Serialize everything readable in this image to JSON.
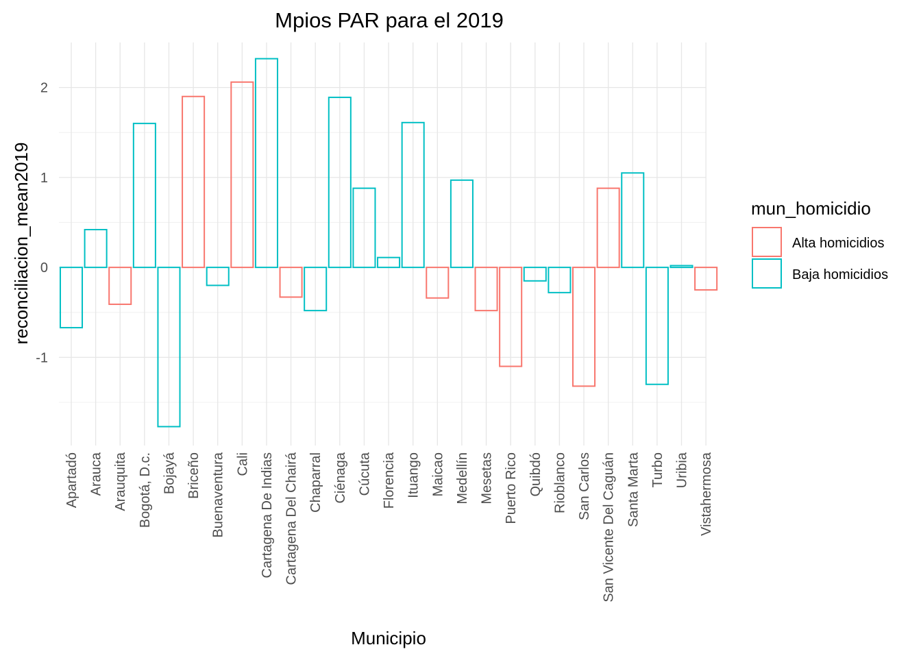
{
  "chart_data": {
    "type": "bar",
    "title": "Mpios PAR para el 2019",
    "xlabel": "Municipio",
    "ylabel": "reconciliacion_mean2019",
    "ylim": [
      -1.98,
      2.5
    ],
    "yticks": [
      -1,
      0,
      1,
      2
    ],
    "grid": true,
    "legend": {
      "title": "mun_homicidio",
      "position": "right",
      "entries": [
        {
          "label": "Alta homicidios",
          "color": "#F8766D"
        },
        {
          "label": "Baja homicidios",
          "color": "#00BFC4"
        }
      ]
    },
    "categories": [
      "Apartadó",
      "Arauca",
      "Arauquita",
      "Bogotá, D.c.",
      "Bojayá",
      "Briceño",
      "Buenaventura",
      "Cali",
      "Cartagena De Indias",
      "Cartagena Del Chairá",
      "Chaparral",
      "Ciénaga",
      "Cúcuta",
      "Florencia",
      "Ituango",
      "Maicao",
      "Medellín",
      "Mesetas",
      "Puerto Rico",
      "Quibdó",
      "Rioblanco",
      "San Carlos",
      "San Vicente Del Caguán",
      "Santa Marta",
      "Turbo",
      "Uribia",
      "Vistahermosa"
    ],
    "values": [
      -0.67,
      0.42,
      -0.41,
      1.6,
      -1.77,
      1.9,
      -0.2,
      2.06,
      2.32,
      -0.33,
      -0.48,
      1.89,
      0.88,
      0.11,
      1.61,
      -0.34,
      0.97,
      -0.48,
      -1.1,
      -0.15,
      -0.28,
      -1.32,
      0.88,
      1.05,
      -1.3,
      0.02,
      -0.25
    ],
    "groups": [
      "Baja homicidios",
      "Baja homicidios",
      "Alta homicidios",
      "Baja homicidios",
      "Baja homicidios",
      "Alta homicidios",
      "Baja homicidios",
      "Alta homicidios",
      "Baja homicidios",
      "Alta homicidios",
      "Baja homicidios",
      "Baja homicidios",
      "Baja homicidios",
      "Baja homicidios",
      "Baja homicidios",
      "Alta homicidios",
      "Baja homicidios",
      "Alta homicidios",
      "Alta homicidios",
      "Baja homicidios",
      "Baja homicidios",
      "Alta homicidios",
      "Alta homicidios",
      "Baja homicidios",
      "Baja homicidios",
      "Baja homicidios",
      "Alta homicidios"
    ]
  }
}
